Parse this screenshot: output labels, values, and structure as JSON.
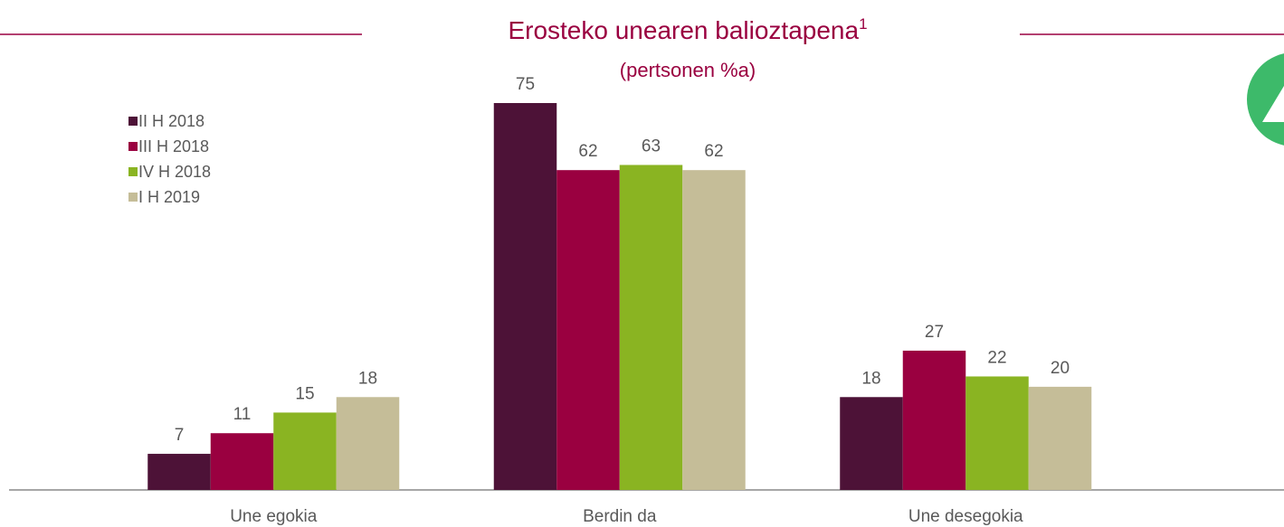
{
  "chart_data": {
    "type": "bar",
    "title": "Erosteko unearen balioztapena",
    "title_superscript": "1",
    "subtitle": "(pertsonen %a)",
    "categories": [
      "Une egokia",
      "Berdin da",
      "Une desegokia"
    ],
    "series": [
      {
        "name": "II H 2018",
        "color": "#4d1237",
        "values": [
          7,
          75,
          18
        ]
      },
      {
        "name": "III H 2018",
        "color": "#9a0040",
        "values": [
          11,
          62,
          27
        ]
      },
      {
        "name": "IV H 2018",
        "color": "#8ab422",
        "values": [
          15,
          63,
          22
        ]
      },
      {
        "name": "I H 2019",
        "color": "#c5bd98",
        "values": [
          18,
          62,
          20
        ]
      }
    ],
    "legend": "top-left"
  }
}
